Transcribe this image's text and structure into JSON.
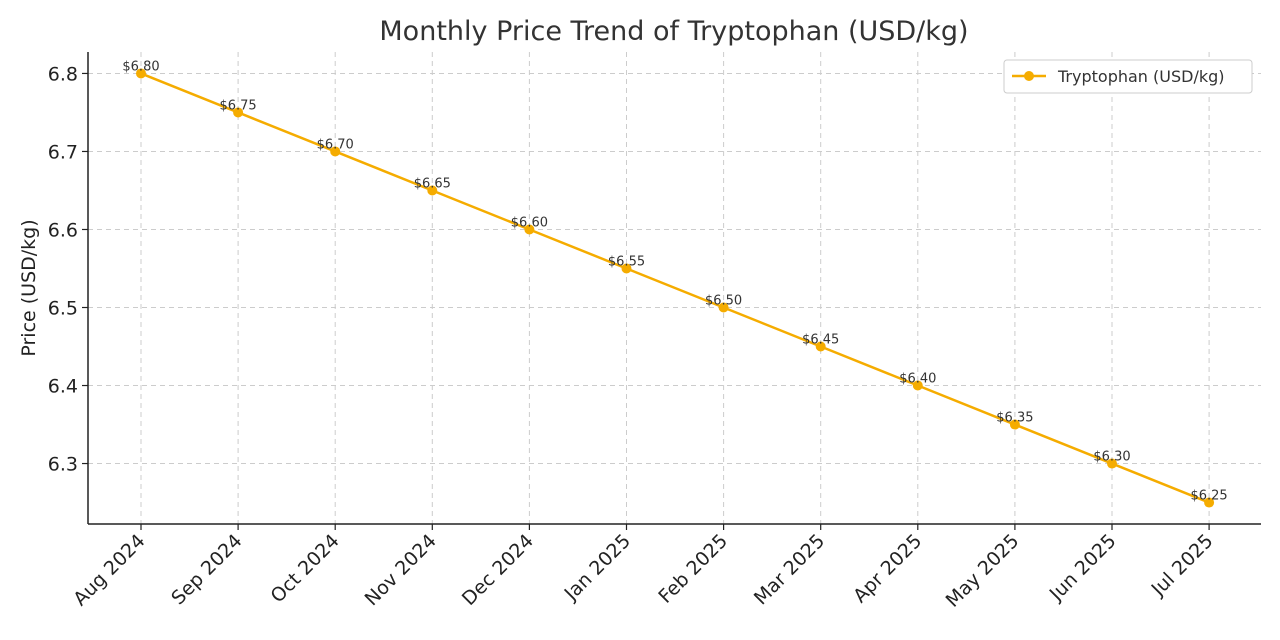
{
  "chart_data": {
    "type": "line",
    "title": "Monthly Price Trend of Tryptophan (USD/kg)",
    "xlabel": "",
    "ylabel": "Price (USD/kg)",
    "categories": [
      "Aug 2024",
      "Sep 2024",
      "Oct 2024",
      "Nov 2024",
      "Dec 2024",
      "Jan 2025",
      "Feb 2025",
      "Mar 2025",
      "Apr 2025",
      "May 2025",
      "Jun 2025",
      "Jul 2025"
    ],
    "series": [
      {
        "name": "Tryptophan (USD/kg)",
        "color": "#f5ac00",
        "values": [
          6.8,
          6.75,
          6.7,
          6.65,
          6.6,
          6.55,
          6.5,
          6.45,
          6.4,
          6.35,
          6.3,
          6.25
        ],
        "data_labels": [
          "$6.80",
          "$6.75",
          "$6.70",
          "$6.65",
          "$6.60",
          "$6.55",
          "$6.50",
          "$6.45",
          "$6.40",
          "$6.35",
          "$6.30",
          "$6.25"
        ]
      }
    ],
    "ylim": [
      6.2225,
      6.8275
    ],
    "yticks": [
      6.3,
      6.4,
      6.5,
      6.6,
      6.7,
      6.8
    ],
    "ytick_labels": [
      "6.3",
      "6.4",
      "6.5",
      "6.6",
      "6.7",
      "6.8"
    ],
    "grid": true,
    "legend_position": "top-right"
  }
}
